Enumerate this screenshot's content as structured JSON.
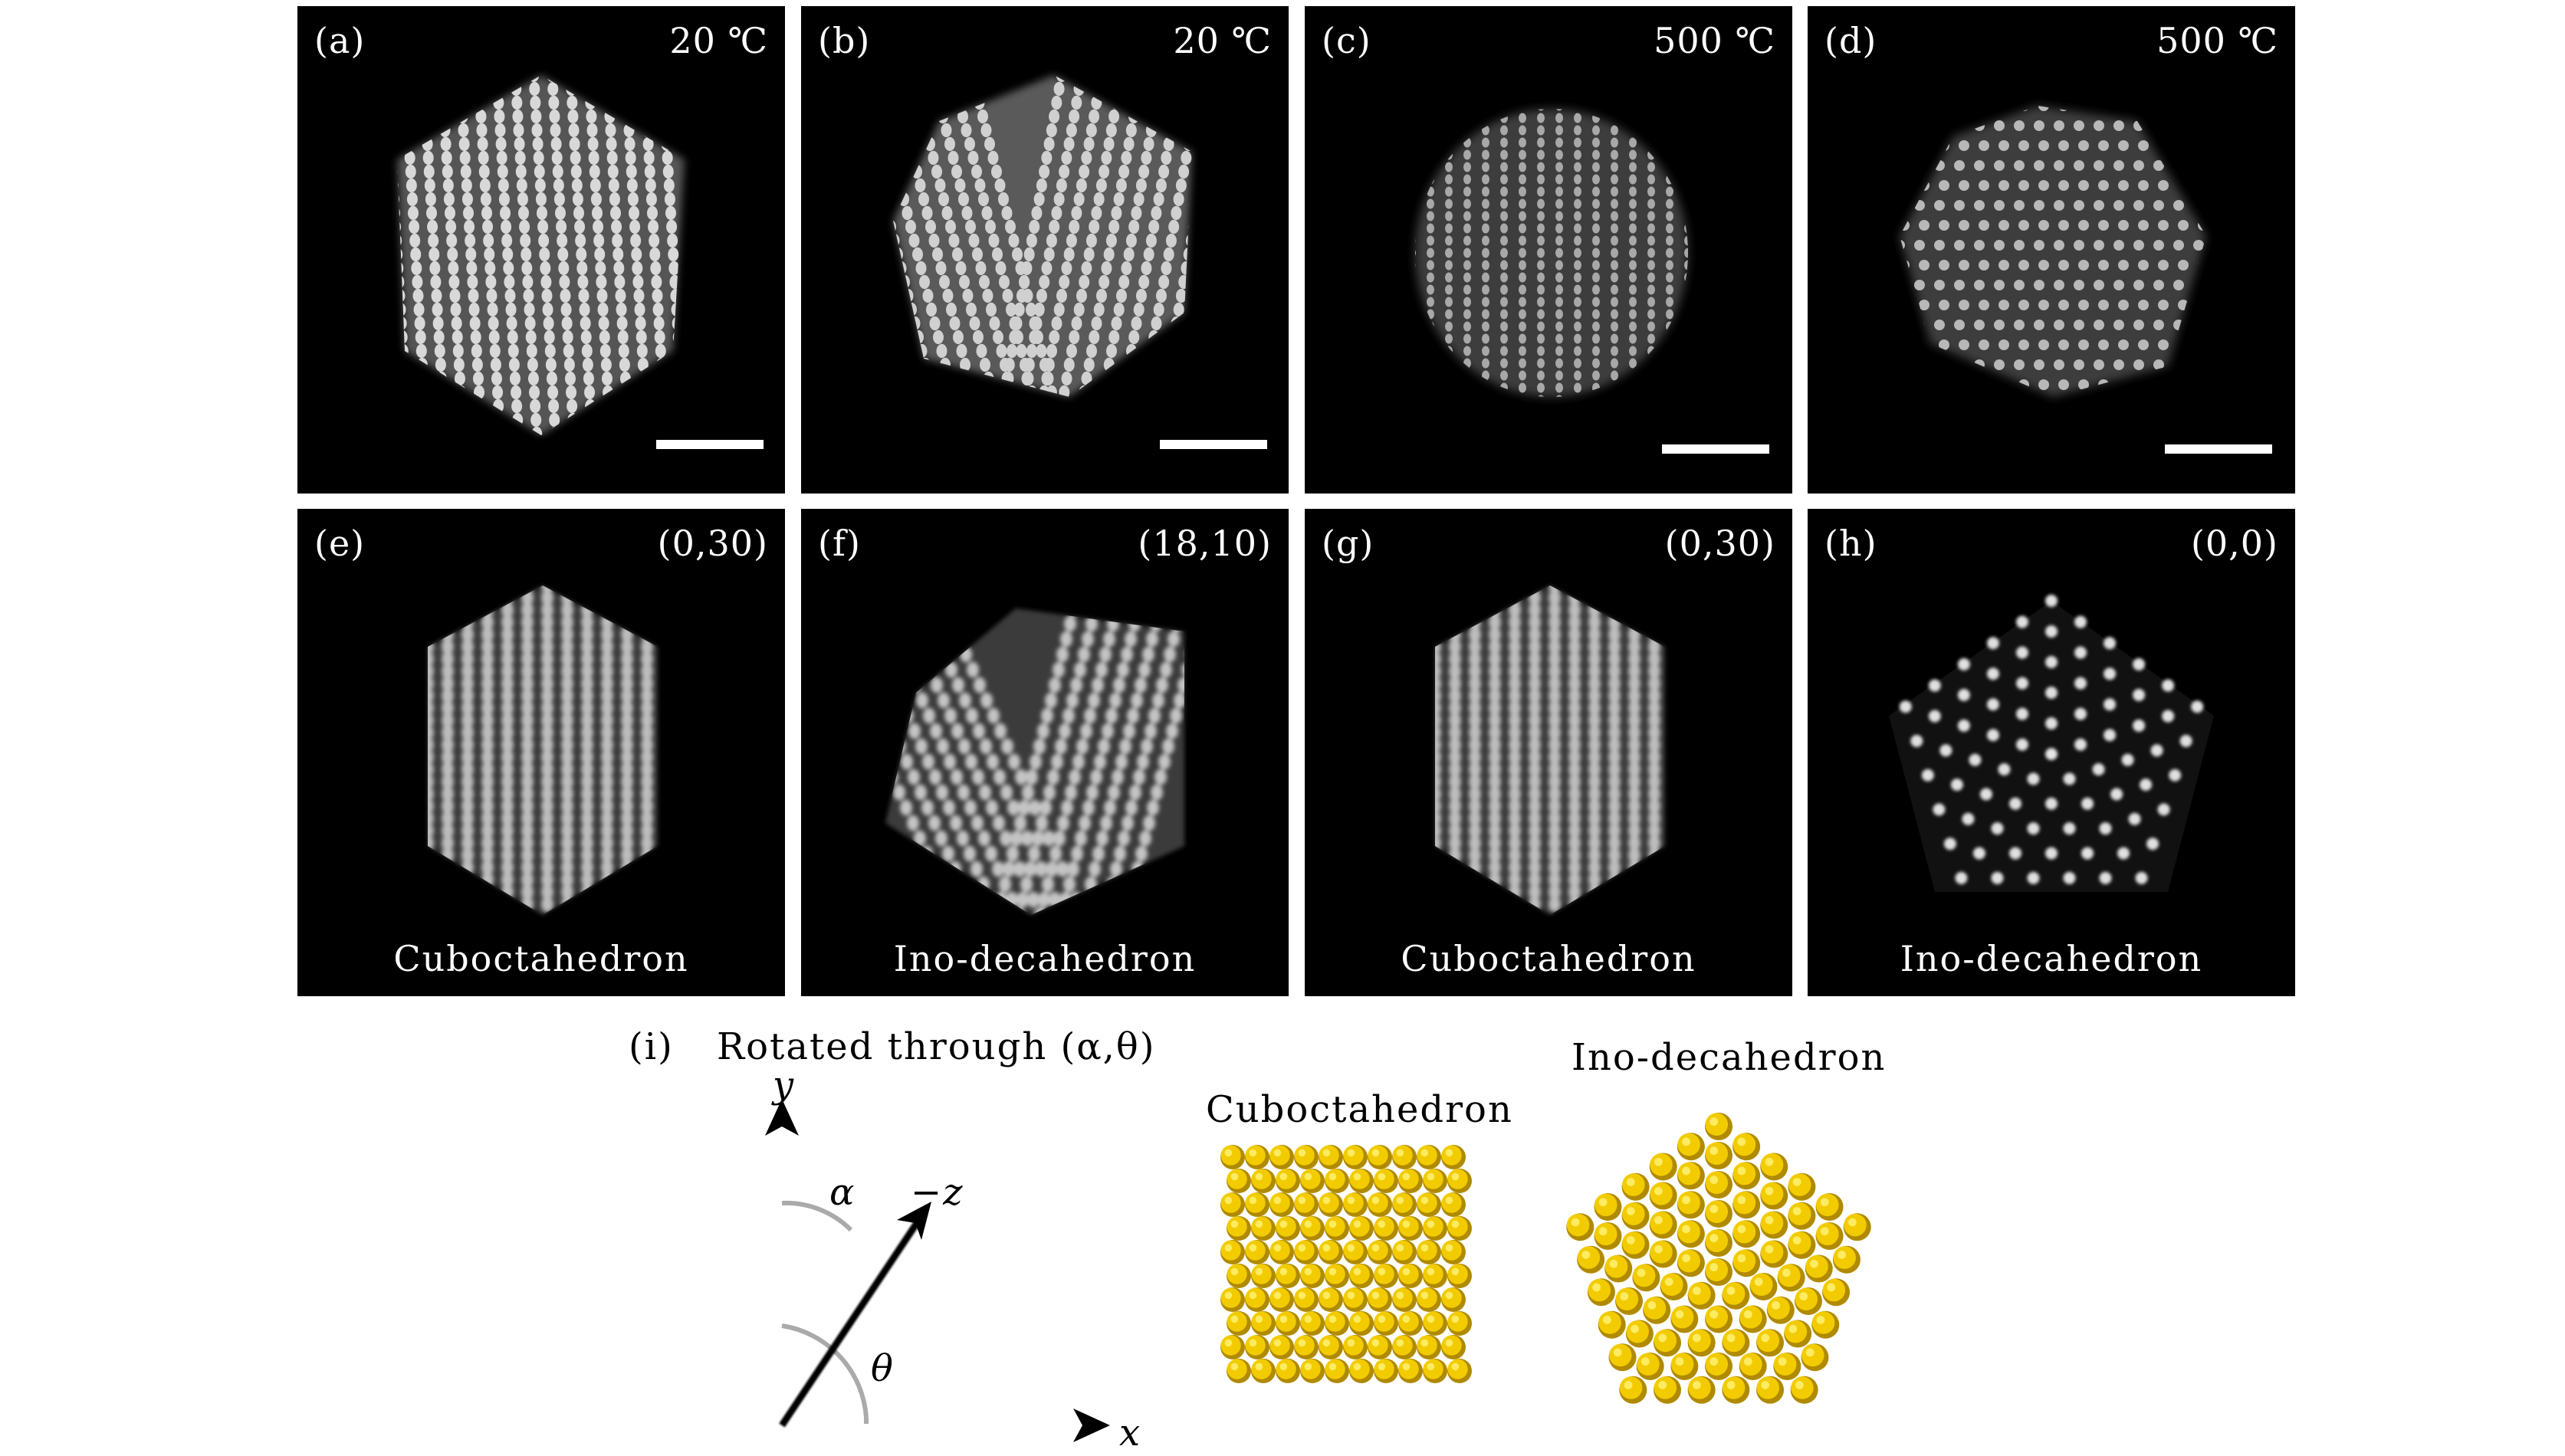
{
  "figure": {
    "panels": [
      {
        "id": "a",
        "label": "(a)",
        "top_right": "20 ℃"
      },
      {
        "id": "b",
        "label": "(b)",
        "top_right": "20 ℃"
      },
      {
        "id": "c",
        "label": "(c)",
        "top_right": "500 ℃"
      },
      {
        "id": "d",
        "label": "(d)",
        "top_right": "500 ℃"
      },
      {
        "id": "e",
        "label": "(e)",
        "top_right": "(0,30)",
        "bottom": "Cuboctahedron"
      },
      {
        "id": "f",
        "label": "(f)",
        "top_right": "(18,10)",
        "bottom": "Ino-decahedron"
      },
      {
        "id": "g",
        "label": "(g)",
        "top_right": "(0,30)",
        "bottom": "Cuboctahedron"
      },
      {
        "id": "h",
        "label": "(h)",
        "top_right": "(0,0)",
        "bottom": "Ino-decahedron"
      }
    ],
    "panel_i": {
      "label": "(i)",
      "caption": "Rotated through (α,θ)",
      "axis_y": "y",
      "axis_x": "x",
      "axis_z": "−z",
      "angle_alpha": "α",
      "angle_theta": "θ",
      "model_cubo": "Cuboctahedron",
      "model_ino": "Ino-decahedron"
    },
    "colors": {
      "atom": "#f2cc00",
      "atom_dark": "#b08a00",
      "background": "#000000"
    }
  }
}
